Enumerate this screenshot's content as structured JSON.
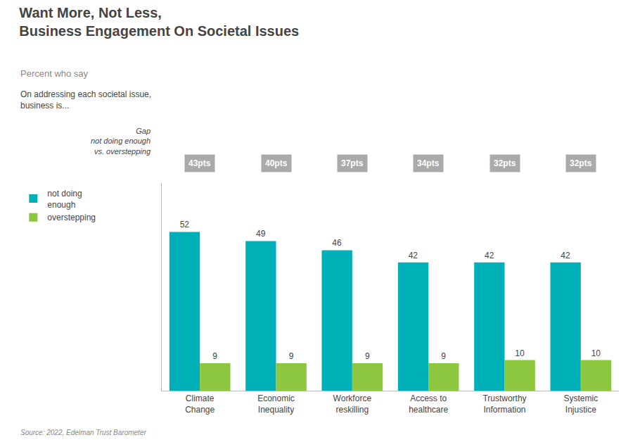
{
  "chart_data": {
    "type": "bar",
    "title": "Want More, Not Less,\nBusiness Engagement On Societal Issues",
    "subtitle": "Percent who say",
    "categories": [
      "Climate\nChange",
      "Economic\nInequality",
      "Workforce\nreskilling",
      "Access to\nhealthcare",
      "Trustworthy\nInformation",
      "Systemic\nInjustice"
    ],
    "series": [
      {
        "name": "not doing\nenough",
        "color": "#00B0B9",
        "values": [
          52,
          49,
          46,
          42,
          42,
          42
        ]
      },
      {
        "name": "overstepping",
        "color": "#8DC63F",
        "values": [
          9,
          9,
          9,
          9,
          10,
          10
        ]
      }
    ],
    "gaps": [
      43,
      40,
      37,
      34,
      32,
      32
    ],
    "gap_labels": [
      "43pts",
      "40pts",
      "37pts",
      "34pts",
      "32pts",
      "32pts"
    ],
    "annotations": [
      "On addressing each societal issue,\nbusiness is...",
      "Gap\nnot doing enough\nvs. overstepping",
      "Source: 2022, Edelman Trust Barometer"
    ],
    "ylim": [
      0,
      68
    ],
    "grid": false,
    "legend": "left",
    "data_labels": true,
    "tick_labels": "x"
  }
}
